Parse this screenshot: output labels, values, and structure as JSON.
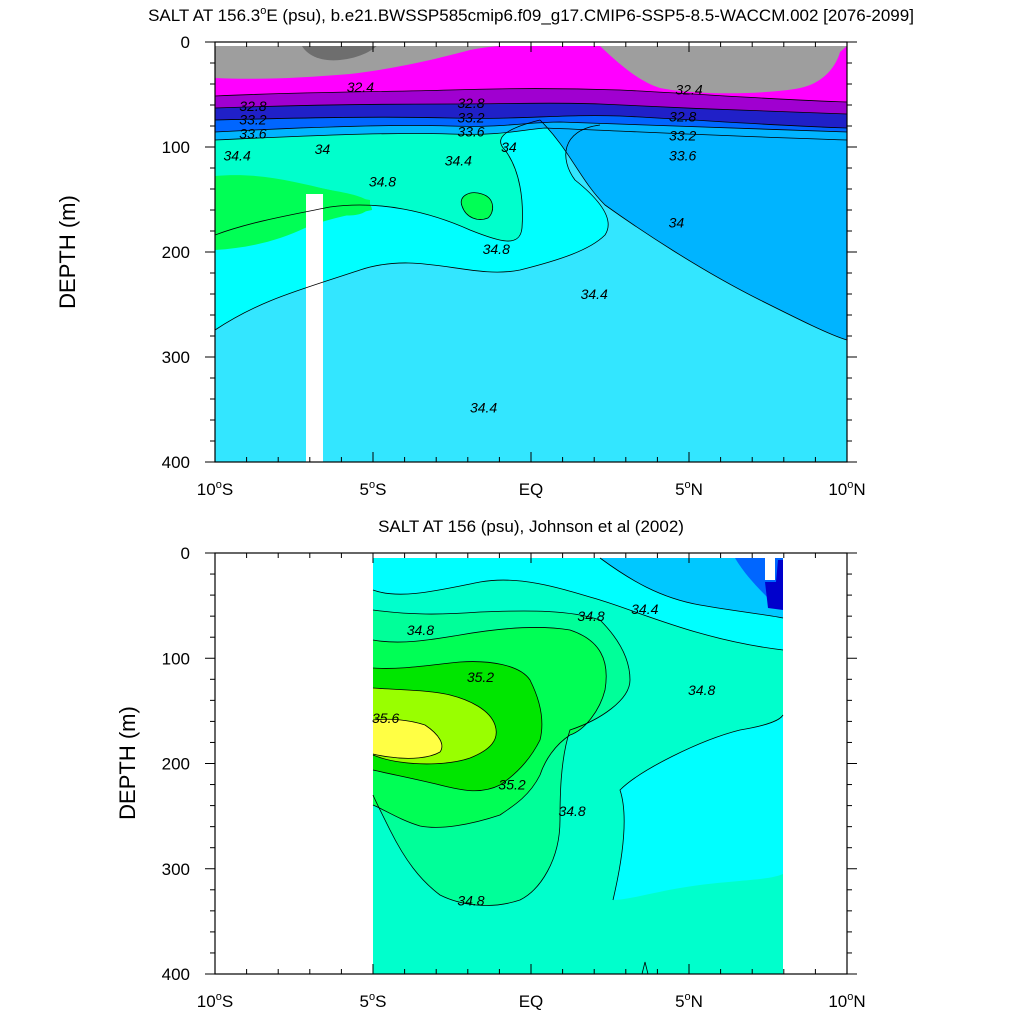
{
  "chart_data": [
    {
      "type": "contour",
      "title_pre": "SALT AT 156.3",
      "title_sup": "o",
      "title_post": "E (psu), b.e21.BWSSP585cmip6.f09_g17.CMIP6-SSP5-8.5-WACCM.002 [2076-2099]",
      "xlabel": "",
      "ylabel": "DEPTH (m)",
      "xlim": [
        -10,
        10
      ],
      "ylim": [
        0,
        400
      ],
      "y_reversed": true,
      "x_ticks": [
        {
          "v": -10,
          "pre": "10",
          "sup": "o",
          "post": "S"
        },
        {
          "v": -5,
          "pre": "5",
          "sup": "o",
          "post": "S"
        },
        {
          "v": 0,
          "pre": "EQ",
          "sup": "",
          "post": ""
        },
        {
          "v": 5,
          "pre": "5",
          "sup": "o",
          "post": "N"
        },
        {
          "v": 10,
          "pre": "10",
          "sup": "o",
          "post": "N"
        }
      ],
      "y_ticks": [
        "0",
        "100",
        "200",
        "300",
        "400"
      ],
      "colors": {
        "lt_32_4": "#9e9e9e",
        "below_32": "#6e6e6e",
        "band_32_4": "#ff00ff",
        "band_32_8": "#a000d0",
        "band_33_2": "#2020c8",
        "band_33_6": "#0066ff",
        "band_34_0": "#00b4ff",
        "band_34_4": "#00ffff",
        "band_34_8": "#00ffcc",
        "band_35_0": "#00ff55",
        "band_deep": "#33e6ff"
      },
      "contour_labels": [
        {
          "x": -5.4,
          "y": 43,
          "text": "32.4"
        },
        {
          "x": -8.8,
          "y": 61,
          "text": "32.8"
        },
        {
          "x": -8.8,
          "y": 74,
          "text": "33.2"
        },
        {
          "x": -8.8,
          "y": 87,
          "text": "33.6"
        },
        {
          "x": -9.3,
          "y": 108,
          "text": "34.4"
        },
        {
          "x": -6.6,
          "y": 102,
          "text": "34"
        },
        {
          "x": -4.7,
          "y": 133,
          "text": "34.8"
        },
        {
          "x": -1.9,
          "y": 58,
          "text": "32.8"
        },
        {
          "x": -1.9,
          "y": 72,
          "text": "33.2"
        },
        {
          "x": -1.9,
          "y": 85,
          "text": "33.6"
        },
        {
          "x": -2.3,
          "y": 113,
          "text": "34.4"
        },
        {
          "x": -0.7,
          "y": 100,
          "text": "34"
        },
        {
          "x": -1.1,
          "y": 197,
          "text": "34.8"
        },
        {
          "x": 2.0,
          "y": 240,
          "text": "34.4"
        },
        {
          "x": -1.5,
          "y": 348,
          "text": "34.4"
        },
        {
          "x": 5.0,
          "y": 45,
          "text": "32.4"
        },
        {
          "x": 4.8,
          "y": 71,
          "text": "32.8"
        },
        {
          "x": 4.8,
          "y": 89,
          "text": "33.2"
        },
        {
          "x": 4.8,
          "y": 108,
          "text": "33.6"
        },
        {
          "x": 4.6,
          "y": 172,
          "text": "34"
        }
      ]
    },
    {
      "type": "contour",
      "title_pre": "SALT AT 156 (psu), Johnson et al (2002)",
      "title_sup": "",
      "title_post": "",
      "xlabel": "",
      "ylabel": "DEPTH (m)",
      "xlim": [
        -10,
        10
      ],
      "ylim": [
        0,
        400
      ],
      "y_reversed": true,
      "x_ticks": [
        {
          "v": -10,
          "pre": "10",
          "sup": "o",
          "post": "S"
        },
        {
          "v": -5,
          "pre": "5",
          "sup": "o",
          "post": "S"
        },
        {
          "v": 0,
          "pre": "EQ",
          "sup": "",
          "post": ""
        },
        {
          "v": 5,
          "pre": "5",
          "sup": "o",
          "post": "N"
        },
        {
          "v": 10,
          "pre": "10",
          "sup": "o",
          "post": "N"
        }
      ],
      "y_ticks": [
        "0",
        "100",
        "200",
        "300",
        "400"
      ],
      "colors": {
        "band_34_0": "#00c8ff",
        "band_34_4": "#00ffff",
        "band_34_8": "#00ffcc",
        "band_35_0": "#00ff99",
        "band_35_2": "#00ff55",
        "band_35_4": "#00e600",
        "band_35_6": "#99ff00",
        "band_35_8": "#ffff44",
        "band_low": "#0066ff",
        "band_lowest": "#0000cc"
      },
      "contour_labels": [
        {
          "x": -3.5,
          "y": 73,
          "text": "34.8"
        },
        {
          "x": -1.6,
          "y": 118,
          "text": "35.2"
        },
        {
          "x": -4.6,
          "y": 157,
          "text": "35.6"
        },
        {
          "x": -0.6,
          "y": 220,
          "text": "35.2"
        },
        {
          "x": 1.3,
          "y": 245,
          "text": "34.8"
        },
        {
          "x": 1.9,
          "y": 60,
          "text": "34.8"
        },
        {
          "x": 3.6,
          "y": 53,
          "text": "34.4"
        },
        {
          "x": 5.4,
          "y": 130,
          "text": "34.8"
        },
        {
          "x": -1.9,
          "y": 330,
          "text": "34.8"
        }
      ]
    }
  ]
}
